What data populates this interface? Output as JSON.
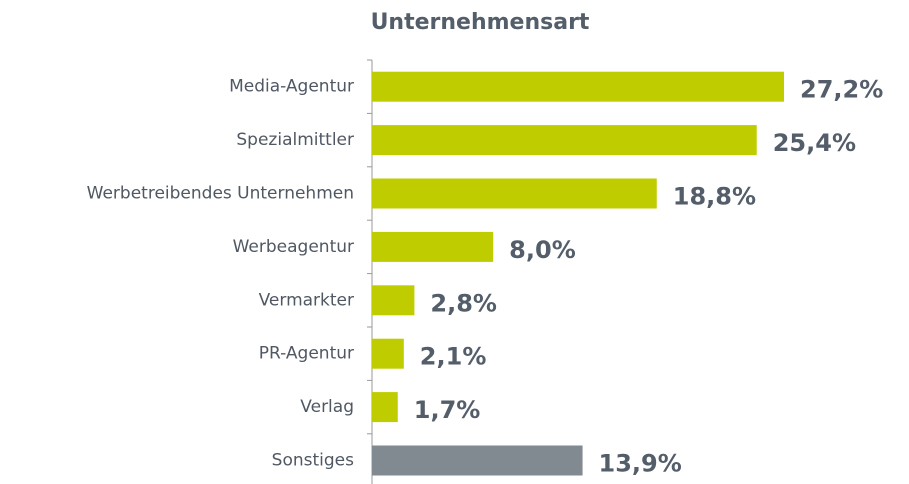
{
  "chart_data": {
    "type": "bar",
    "orientation": "horizontal",
    "title": "Unternehmensart",
    "categories": [
      "Media-Agentur",
      "Spezialmittler",
      "Werbetreibendes Unternehmen",
      "Werbeagentur",
      "Vermarkter",
      "PR-Agentur",
      "Verlag",
      "Sonstiges"
    ],
    "values": [
      27.2,
      25.4,
      18.8,
      8.0,
      2.8,
      2.1,
      1.7,
      13.9
    ],
    "value_labels": [
      "27,2%",
      "25,4%",
      "18,8%",
      "8,0%",
      "2,8%",
      "2,1%",
      "1,7%",
      "13,9%"
    ],
    "colors": [
      "#bfcc00",
      "#bfcc00",
      "#bfcc00",
      "#bfcc00",
      "#bfcc00",
      "#bfcc00",
      "#bfcc00",
      "#818991"
    ]
  }
}
